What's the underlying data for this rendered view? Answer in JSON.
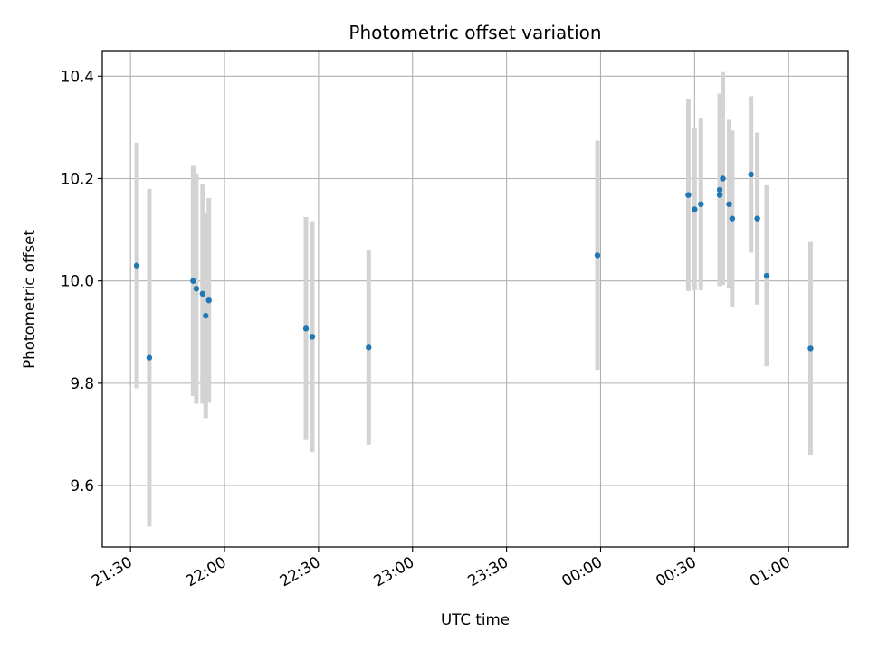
{
  "chart_data": {
    "type": "scatter",
    "title": "Photometric offset variation",
    "xlabel": "UTC time",
    "ylabel": "Photometric offset",
    "x_tick_labels": [
      "21:30",
      "22:00",
      "22:30",
      "23:00",
      "23:30",
      "00:00",
      "00:30",
      "01:00"
    ],
    "y_tick_labels": [
      "9.6",
      "9.8",
      "10.0",
      "10.2",
      "10.4"
    ],
    "xlim": [
      "21:21",
      "01:19"
    ],
    "ylim": [
      9.48,
      10.45
    ],
    "grid": true,
    "marker_color": "#1f77b4",
    "errorbar_color": "#d3d3d3",
    "points": [
      {
        "time": "21:32",
        "y": 10.03,
        "err": 0.24
      },
      {
        "time": "21:36",
        "y": 9.85,
        "err": 0.33
      },
      {
        "time": "21:50",
        "y": 10.0,
        "err": 0.225
      },
      {
        "time": "21:51",
        "y": 9.985,
        "err": 0.225
      },
      {
        "time": "21:53",
        "y": 9.975,
        "err": 0.215
      },
      {
        "time": "21:54",
        "y": 9.932,
        "err": 0.2
      },
      {
        "time": "21:55",
        "y": 9.962,
        "err": 0.2
      },
      {
        "time": "22:26",
        "y": 9.907,
        "err": 0.218
      },
      {
        "time": "22:28",
        "y": 9.891,
        "err": 0.226
      },
      {
        "time": "22:46",
        "y": 9.87,
        "err": 0.19
      },
      {
        "time": "23:59",
        "y": 10.05,
        "err": 0.224
      },
      {
        "time": "00:28",
        "y": 10.168,
        "err": 0.188
      },
      {
        "time": "00:30",
        "y": 10.14,
        "err": 0.158
      },
      {
        "time": "00:32",
        "y": 10.15,
        "err": 0.168
      },
      {
        "time": "00:38",
        "y": 10.168,
        "err": 0.178
      },
      {
        "time": "00:38",
        "y": 10.178,
        "err": 0.188
      },
      {
        "time": "00:39",
        "y": 10.2,
        "err": 0.208
      },
      {
        "time": "00:41",
        "y": 10.15,
        "err": 0.165
      },
      {
        "time": "00:42",
        "y": 10.122,
        "err": 0.172
      },
      {
        "time": "00:48",
        "y": 10.208,
        "err": 0.153
      },
      {
        "time": "00:50",
        "y": 10.122,
        "err": 0.168
      },
      {
        "time": "00:53",
        "y": 10.01,
        "err": 0.177
      },
      {
        "time": "01:07",
        "y": 9.868,
        "err": 0.208
      }
    ]
  }
}
